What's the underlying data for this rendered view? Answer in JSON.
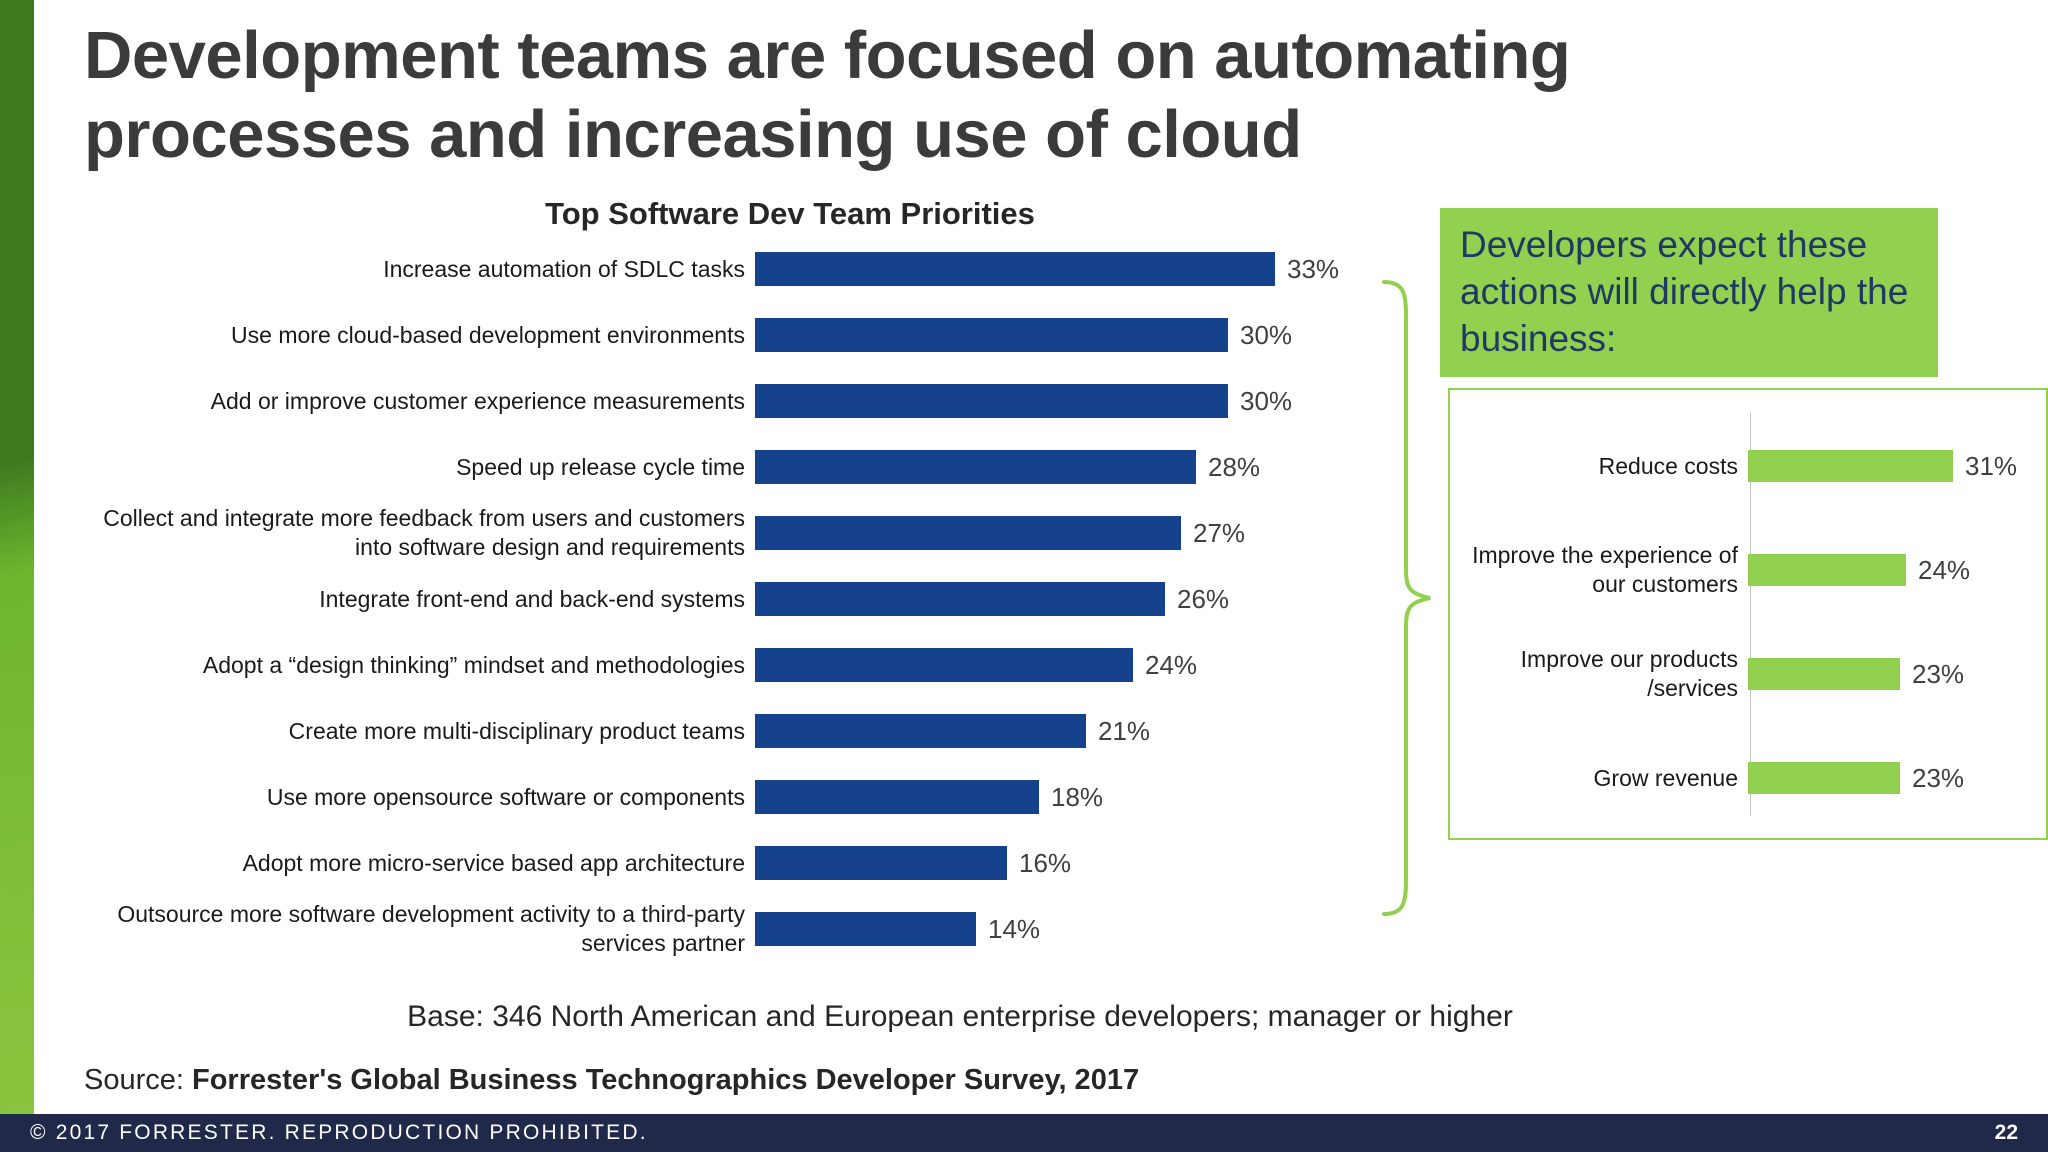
{
  "slide": {
    "title_lines": [
      "Development teams are focused on automating",
      "processes and increasing use of cloud"
    ],
    "base_note": "Base: 346 North American and European enterprise developers; manager or higher",
    "source_prefix": "Source: ",
    "source_bold": "Forrester's Global Business Technographics Developer Survey, 2017",
    "footer": {
      "copyright": "© 2017 FORRESTER. REPRODUCTION PROHIBITED.",
      "page_number": "22"
    }
  },
  "callout": {
    "text": "Developers expect these actions will directly help the business:"
  },
  "colors": {
    "bar_blue": "#16418c",
    "accent_green": "#92d050",
    "footer_navy": "#20294a"
  },
  "chart_data": [
    {
      "type": "bar",
      "orientation": "horizontal",
      "title": "Top Software Dev Team Priorities",
      "unit": "%",
      "bar_color": "#16418c",
      "xlim": [
        0,
        35
      ],
      "grid": false,
      "legend": false,
      "value_labels": true,
      "categories": [
        "Increase automation of SDLC tasks",
        "Use more cloud-based development environments",
        "Add or improve customer experience measurements",
        "Speed up release cycle time",
        "Collect and integrate more feedback from users and customers into software design and requirements",
        "Integrate front-end and back-end systems",
        "Adopt a “design thinking” mindset and methodologies",
        "Create more multi-disciplinary product teams",
        "Use more opensource software or components",
        "Adopt more micro-service based app architecture",
        "Outsource more software development activity to a third-party services partner"
      ],
      "values": [
        33,
        30,
        30,
        28,
        27,
        26,
        24,
        21,
        18,
        16,
        14
      ]
    },
    {
      "type": "bar",
      "orientation": "horizontal",
      "title": "",
      "unit": "%",
      "bar_color": "#92d050",
      "xlim": [
        0,
        35
      ],
      "grid": false,
      "legend": false,
      "value_labels": true,
      "categories": [
        "Reduce costs",
        "Improve the experience of our customers",
        "Improve our products /services",
        "Grow revenue"
      ],
      "values": [
        31,
        24,
        23,
        23
      ]
    }
  ]
}
